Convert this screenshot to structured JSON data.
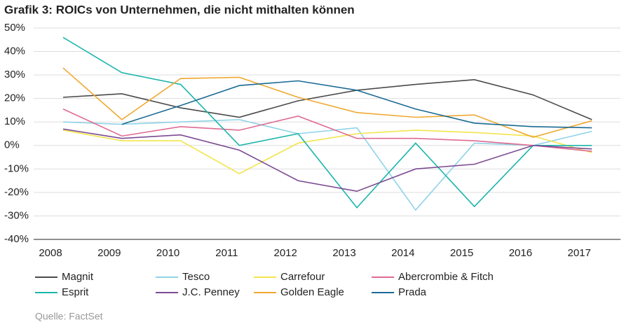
{
  "chart_data": {
    "type": "line",
    "title": "Grafik 3: ROICs von Unternehmen, die nicht mithalten können",
    "source": "Quelle: FactSet",
    "categories": [
      "2008",
      "2009",
      "2010",
      "2011",
      "2012",
      "2013",
      "2014",
      "2015",
      "2016",
      "2017"
    ],
    "ylim": [
      -40,
      50
    ],
    "yticks": [
      {
        "value": -40,
        "label": "-40%"
      },
      {
        "value": -30,
        "label": "-30%"
      },
      {
        "value": -20,
        "label": "-20%"
      },
      {
        "value": -10,
        "label": "-10%"
      },
      {
        "value": 0,
        "label": "0%"
      },
      {
        "value": 10,
        "label": "10%"
      },
      {
        "value": 20,
        "label": "20%"
      },
      {
        "value": 30,
        "label": "30%"
      },
      {
        "value": 40,
        "label": "40%"
      },
      {
        "value": 50,
        "label": "50%"
      }
    ],
    "grid": true,
    "series": [
      {
        "name": "Magnit",
        "color": "#4a4a4a",
        "values": [
          20.5,
          22,
          16,
          12,
          19,
          23.5,
          26,
          28,
          21.5,
          11
        ]
      },
      {
        "name": "Tesco",
        "color": "#8fd3e8",
        "values": [
          10,
          9,
          10,
          11,
          5,
          7.5,
          -27.5,
          1,
          0,
          6
        ]
      },
      {
        "name": "Carrefour",
        "color": "#f2e44c",
        "values": [
          6.5,
          2,
          2,
          -12,
          1,
          5,
          6.5,
          5.5,
          4,
          -3
        ]
      },
      {
        "name": "Abercrombie & Fitch",
        "color": "#e06a92",
        "values": [
          15.5,
          4,
          8,
          6.5,
          12.5,
          3,
          3,
          2,
          0,
          -2.5
        ]
      },
      {
        "name": "Esprit",
        "color": "#1ab5ac",
        "values": [
          46,
          31,
          26,
          0,
          5,
          -26.5,
          1,
          -26,
          0,
          0
        ]
      },
      {
        "name": "J.C. Penney",
        "color": "#7b4a92",
        "values": [
          7,
          3,
          4.5,
          -2,
          -15,
          -19.5,
          -10,
          -8,
          0,
          -1.5
        ]
      },
      {
        "name": "Golden Eagle",
        "color": "#f0a830",
        "values": [
          33,
          11,
          28.5,
          29,
          20.5,
          14,
          12,
          13,
          3.5,
          10.5
        ]
      },
      {
        "name": "Prada",
        "color": "#1a6a94",
        "values": [
          null,
          9,
          17,
          25.5,
          27.5,
          23.5,
          15.5,
          9.5,
          8,
          7.5
        ]
      }
    ]
  }
}
